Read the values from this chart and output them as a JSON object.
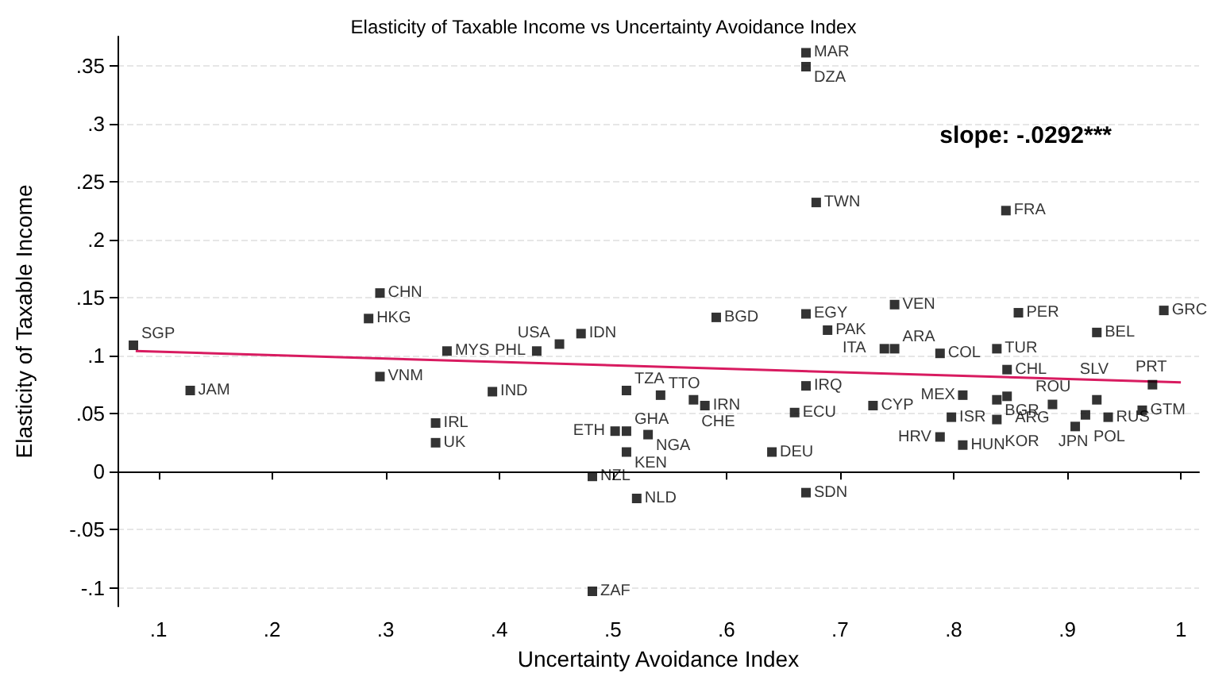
{
  "chart_data": {
    "type": "scatter",
    "title": "Elasticity of Taxable Income vs Uncertainty Avoidance Index",
    "xlabel": "Uncertainty Avoidance Index",
    "ylabel": "Elasticity of Taxable Income",
    "annotations": [
      "slope: -.0292***"
    ],
    "xlim": [
      0.064,
      1.016
    ],
    "ylim": [
      -0.116,
      0.375
    ],
    "xticks": [
      {
        "value": 0.1,
        "label": ".1"
      },
      {
        "value": 0.2,
        "label": ".2"
      },
      {
        "value": 0.3,
        "label": ".3"
      },
      {
        "value": 0.4,
        "label": ".4"
      },
      {
        "value": 0.5,
        "label": ".5"
      },
      {
        "value": 0.6,
        "label": ".6"
      },
      {
        "value": 0.7,
        "label": ".7"
      },
      {
        "value": 0.8,
        "label": ".8"
      },
      {
        "value": 0.9,
        "label": ".9"
      },
      1
    ],
    "yticks": [
      {
        "value": -0.1,
        "label": "-.1"
      },
      {
        "value": -0.05,
        "label": "-.05"
      },
      0,
      {
        "value": 0.05,
        "label": ".05"
      },
      {
        "value": 0.1,
        "label": ".1"
      },
      {
        "value": 0.15,
        "label": ".15"
      },
      {
        "value": 0.2,
        "label": ".2"
      },
      {
        "value": 0.25,
        "label": ".25"
      },
      {
        "value": 0.3,
        "label": ".3"
      },
      {
        "value": 0.35,
        "label": ".35"
      }
    ],
    "grid": "y",
    "series": [
      {
        "marker": "square",
        "color": "#000000",
        "x": [
          0.078,
          0.128,
          0.295,
          0.285,
          0.295,
          0.354,
          0.344,
          0.344,
          0.394,
          0.433,
          0.453,
          0.472,
          0.512,
          0.502,
          0.512,
          0.531,
          0.512,
          0.482,
          0.521,
          0.482,
          0.542,
          0.571,
          0.581,
          0.591,
          0.67,
          0.67,
          0.66,
          0.64,
          0.67,
          0.689,
          0.748,
          0.739,
          0.748,
          0.729,
          0.788,
          0.798,
          0.788,
          0.808,
          0.808,
          0.857,
          0.838,
          0.847,
          0.838,
          0.847,
          0.838,
          0.887,
          0.926,
          0.926,
          0.916,
          0.907,
          0.936,
          0.966,
          0.975,
          0.985,
          0.67,
          0.67,
          0.679,
          0.846
        ],
        "values": [
          0.109,
          0.07,
          0.154,
          0.132,
          0.082,
          0.104,
          0.042,
          0.025,
          0.069,
          0.104,
          0.11,
          0.119,
          0.07,
          0.035,
          0.035,
          0.032,
          0.017,
          -0.004,
          -0.023,
          -0.103,
          0.066,
          0.062,
          0.057,
          0.133,
          0.136,
          0.074,
          0.051,
          0.017,
          -0.018,
          0.122,
          0.144,
          0.106,
          0.106,
          0.057,
          0.102,
          0.047,
          0.03,
          0.023,
          0.066,
          0.137,
          0.106,
          0.088,
          0.062,
          0.065,
          0.045,
          0.058,
          0.12,
          0.062,
          0.049,
          0.039,
          0.047,
          0.053,
          0.075,
          0.139,
          0.361,
          0.349,
          0.232,
          0.225
        ],
        "value_labels": [
          "SGP",
          "JAM",
          "CHN",
          "HKG",
          "VNM",
          "MYS",
          "IRL",
          "UK",
          "IND",
          "PHL",
          "USA",
          "IDN",
          "TZA",
          "ETH",
          "GHA",
          "NGA",
          "KEN",
          "NZL",
          "NLD",
          "ZAF",
          "TTO",
          "CHE",
          "IRN",
          "BGD",
          "EGY",
          "IRQ",
          "ECU",
          "DEU",
          "SDN",
          "PAK",
          "VEN",
          "ITA",
          "ARA",
          "CYP",
          "COL",
          "ISR",
          "HRV",
          "HUN",
          "MEX",
          "PER",
          "TUR",
          "CHL",
          "BGR",
          "ARG",
          "KOR",
          "ROU",
          "BEL",
          "SLV",
          "POL",
          "JPN",
          "RUS",
          "GTM",
          "PRT",
          "GRC",
          "MAR",
          "DZA",
          "TWN",
          "FRA"
        ]
      },
      {
        "type": "line",
        "color": "#d81b60",
        "x": [
          0.08,
          1.0
        ],
        "values": [
          0.104,
          0.077
        ]
      }
    ]
  }
}
